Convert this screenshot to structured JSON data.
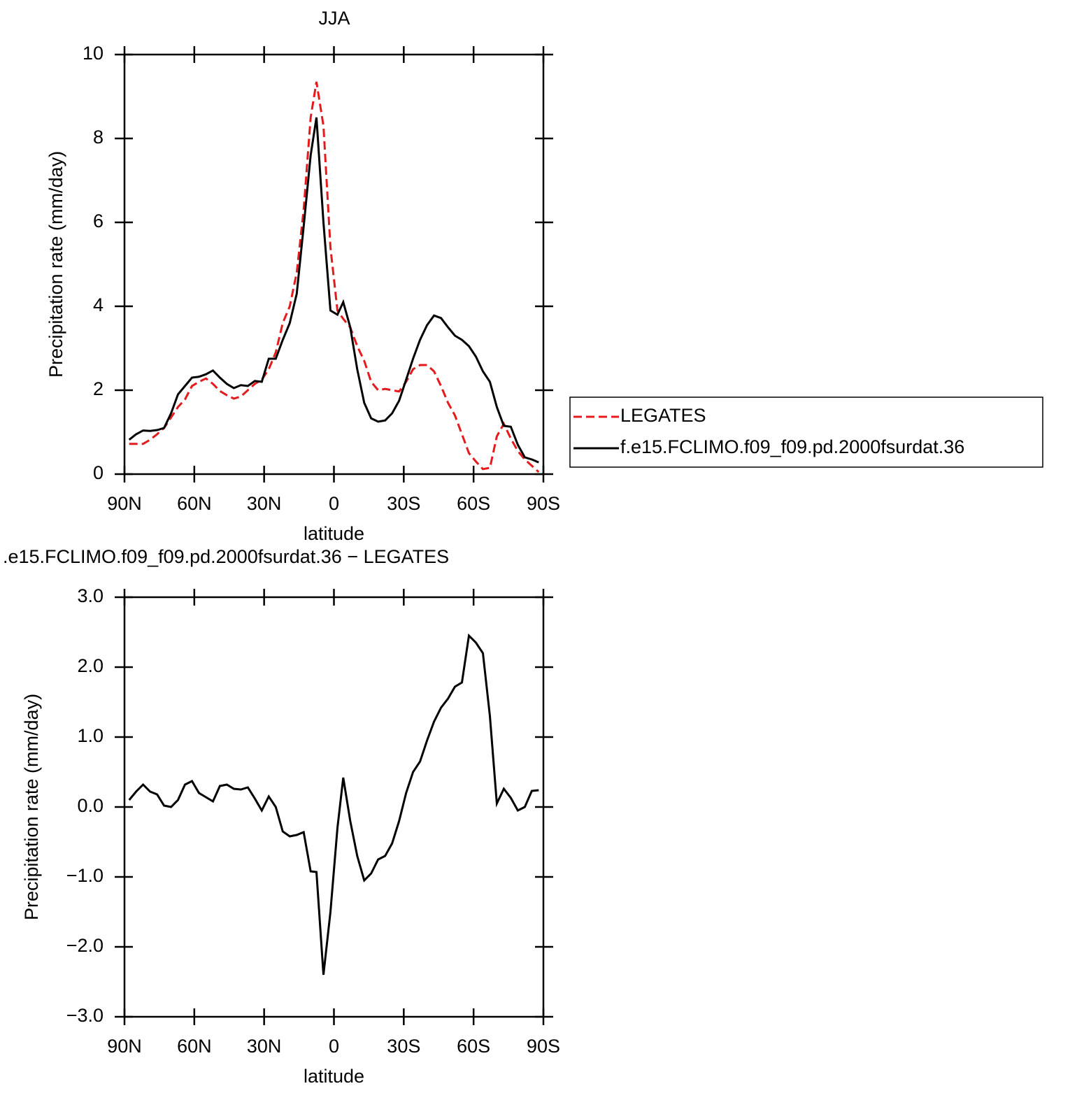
{
  "chart_data": [
    {
      "type": "line",
      "title": "JJA",
      "xlabel": "latitude",
      "ylabel": "Precipitation rate (mm/day)",
      "x": [
        88,
        85,
        82,
        79,
        76,
        73,
        70,
        67,
        64,
        61,
        58,
        55,
        52,
        49,
        46,
        43,
        40,
        37,
        34,
        31,
        28,
        25,
        22,
        19,
        16,
        13,
        10,
        7.5,
        4.5,
        1.5,
        -1.5,
        -4,
        -7,
        -10,
        -13,
        -16,
        -19,
        -22,
        -25,
        -28,
        -31,
        -34,
        -37,
        -40,
        -43,
        -46,
        -49,
        -52,
        -55,
        -58,
        -61,
        -64,
        -67,
        -70,
        -73,
        -76,
        -79,
        -82,
        -85,
        -88
      ],
      "xlim": [
        90,
        -90
      ],
      "xticks": [
        {
          "value": 90,
          "label": "90N"
        },
        {
          "value": 60,
          "label": "60N"
        },
        {
          "value": 30,
          "label": "30N"
        },
        0,
        {
          "value": -30,
          "label": "30S"
        },
        {
          "value": -60,
          "label": "60S"
        },
        {
          "value": -90,
          "label": "90S"
        }
      ],
      "ylim": [
        0,
        10
      ],
      "yticks": [
        0,
        2,
        4,
        6,
        8,
        10
      ],
      "legend": "right",
      "series": [
        {
          "name": "LEGATES",
          "color": "#e41a1c",
          "dash": "dashed",
          "values": [
            0.72,
            0.72,
            0.72,
            0.82,
            0.95,
            1.1,
            1.35,
            1.6,
            1.78,
            2.1,
            2.2,
            2.28,
            2.15,
            1.98,
            1.88,
            1.8,
            1.85,
            2.0,
            2.15,
            2.25,
            2.5,
            2.9,
            3.6,
            4.0,
            4.8,
            6.3,
            8.5,
            9.35,
            8.3,
            5.4,
            3.9,
            3.7,
            3.5,
            3.05,
            2.7,
            2.2,
            2.0,
            2.03,
            2.0,
            1.97,
            2.2,
            2.5,
            2.6,
            2.6,
            2.45,
            2.1,
            1.7,
            1.4,
            0.95,
            0.5,
            0.3,
            0.12,
            0.15,
            0.9,
            1.2,
            0.85,
            0.55,
            0.35,
            0.2,
            0.05
          ]
        },
        {
          "name": "f.e15.FCLIMO.f09_f09.pd.2000fsurdat.36",
          "color": "#000000",
          "dash": "solid",
          "values": [
            0.82,
            0.95,
            1.04,
            1.03,
            1.05,
            1.1,
            1.45,
            1.9,
            2.1,
            2.3,
            2.32,
            2.38,
            2.47,
            2.3,
            2.15,
            2.05,
            2.12,
            2.1,
            2.22,
            2.2,
            2.75,
            2.75,
            3.2,
            3.6,
            4.3,
            5.9,
            7.6,
            8.5,
            6.0,
            3.9,
            3.8,
            4.1,
            3.5,
            2.5,
            1.7,
            1.33,
            1.25,
            1.28,
            1.45,
            1.75,
            2.25,
            2.75,
            3.2,
            3.55,
            3.78,
            3.72,
            3.5,
            3.3,
            3.2,
            3.05,
            2.8,
            2.45,
            2.2,
            1.6,
            1.15,
            1.13,
            0.7,
            0.4,
            0.35,
            0.28
          ]
        }
      ]
    },
    {
      "type": "line",
      "title": ".e15.FCLIMO.f09_f09.pd.2000fsurdat.36 − LEGATES",
      "xlabel": "latitude",
      "ylabel": "Precipitation rate (mm/day)",
      "x": [
        88,
        85,
        82,
        79,
        76,
        73,
        70,
        67,
        64,
        61,
        58,
        55,
        52,
        49,
        46,
        43,
        40,
        37,
        34,
        31,
        28,
        25,
        22,
        19,
        16,
        13,
        10,
        7.5,
        4.5,
        1.5,
        -1.5,
        -4,
        -7,
        -10,
        -13,
        -16,
        -19,
        -22,
        -25,
        -28,
        -31,
        -34,
        -37,
        -40,
        -43,
        -46,
        -49,
        -52,
        -55,
        -58,
        -61,
        -64,
        -67,
        -70,
        -73,
        -76,
        -79,
        -82,
        -85,
        -88
      ],
      "xlim": [
        90,
        -90
      ],
      "xticks": [
        {
          "value": 90,
          "label": "90N"
        },
        {
          "value": 60,
          "label": "60N"
        },
        {
          "value": 30,
          "label": "30N"
        },
        0,
        {
          "value": -30,
          "label": "30S"
        },
        {
          "value": -60,
          "label": "60S"
        },
        {
          "value": -90,
          "label": "90S"
        }
      ],
      "ylim": [
        -3,
        3
      ],
      "yticks": [
        {
          "value": -3,
          "label": "−3.0"
        },
        {
          "value": -2,
          "label": "−2.0"
        },
        {
          "value": -1,
          "label": "−1.0"
        },
        {
          "value": 0,
          "label": "0.0"
        },
        {
          "value": 1,
          "label": "1.0"
        },
        {
          "value": 2,
          "label": "2.0"
        },
        {
          "value": 3,
          "label": "3.0"
        }
      ],
      "series": [
        {
          "color": "#000000",
          "dash": "solid",
          "values": [
            0.1,
            0.22,
            0.32,
            0.22,
            0.18,
            0.02,
            0.0,
            0.1,
            0.32,
            0.37,
            0.2,
            0.14,
            0.08,
            0.3,
            0.32,
            0.26,
            0.25,
            0.28,
            0.12,
            -0.05,
            0.15,
            0.0,
            -0.35,
            -0.42,
            -0.4,
            -0.36,
            -0.92,
            -0.93,
            -2.4,
            -1.5,
            -0.3,
            0.42,
            -0.2,
            -0.7,
            -1.05,
            -0.95,
            -0.75,
            -0.7,
            -0.52,
            -0.2,
            0.2,
            0.5,
            0.65,
            0.95,
            1.22,
            1.42,
            1.55,
            1.72,
            1.78,
            2.45,
            2.35,
            2.2,
            1.3,
            0.05,
            0.26,
            0.13,
            -0.05,
            0.0,
            0.23,
            0.24
          ]
        }
      ]
    }
  ]
}
